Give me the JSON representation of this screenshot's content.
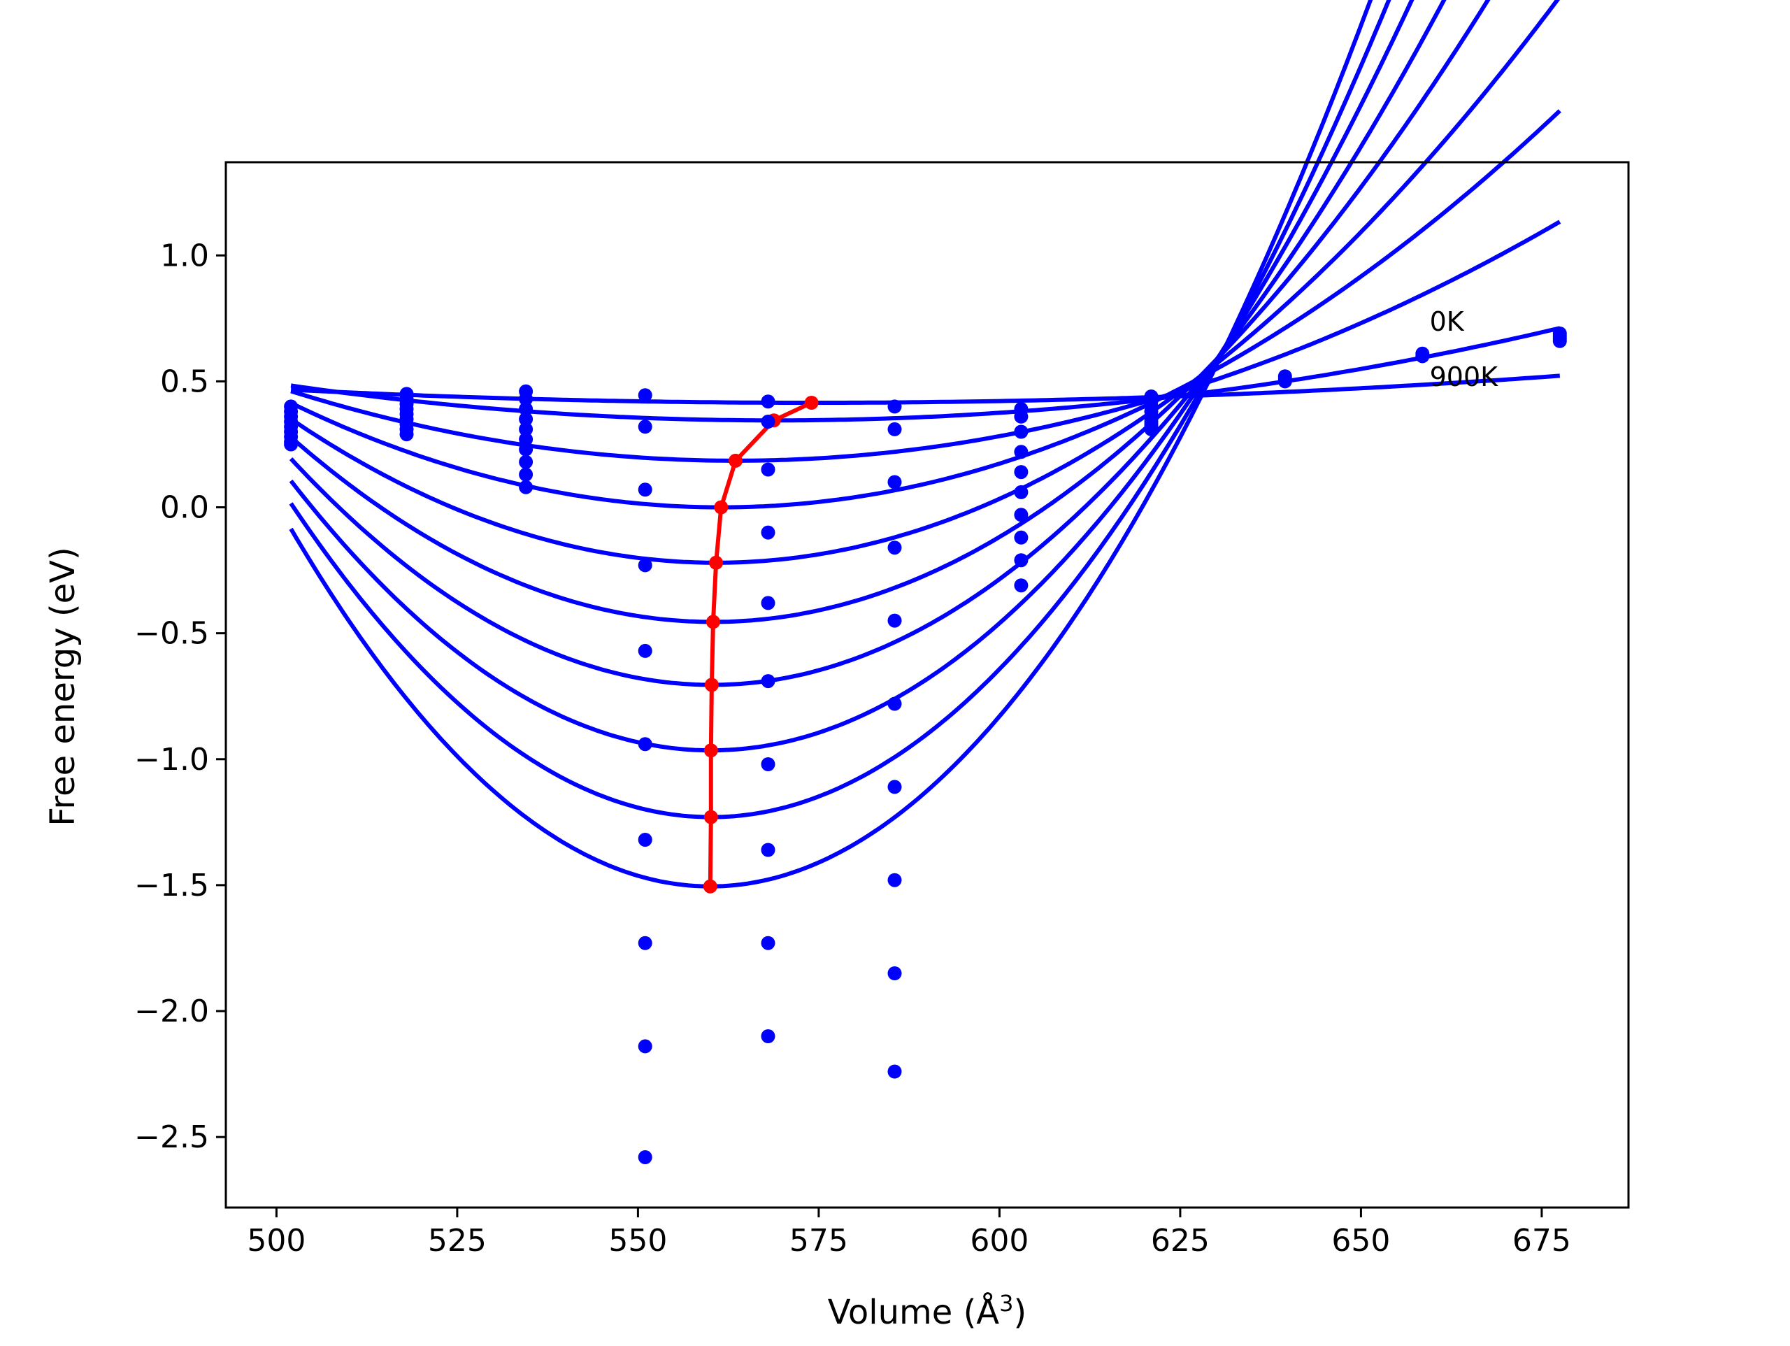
{
  "chart_data": {
    "type": "line",
    "title": "",
    "xlabel": "Volume (Å",
    "xlabel_sup": "3",
    "xlabel_end": ")",
    "ylabel": "Free energy (eV)",
    "xlim": [
      493,
      687
    ],
    "ylim": [
      -2.78,
      1.37
    ],
    "xticks": [
      500,
      525,
      550,
      575,
      600,
      625,
      650,
      675
    ],
    "xtick_labels": [
      "500",
      "525",
      "550",
      "575",
      "600",
      "625",
      "650",
      "675"
    ],
    "yticks": [
      1.0,
      0.5,
      0.0,
      -0.5,
      -1.0,
      -1.5,
      -2.0,
      -2.5
    ],
    "ytick_labels": [
      "1.0",
      "0.5",
      "0.0",
      "−0.5",
      "−1.0",
      "−1.5",
      "−2.0",
      "−2.5"
    ],
    "grid": false,
    "legend": "none",
    "colors": {
      "curves": "#0000ff",
      "points": "#0000ff",
      "minima": "#ff0000"
    },
    "annotations": [
      {
        "text": "0K",
        "x": 659.5,
        "y": 0.74
      },
      {
        "text": "900K",
        "x": 659.5,
        "y": 0.52
      }
    ],
    "curve_x_range": [
      502,
      677.5
    ],
    "fit_curves": [
      {
        "v0": 574.0,
        "e0": 0.415,
        "b": 1e-05
      },
      {
        "v0": 568.8,
        "e0": 0.345,
        "b": 3.1e-05
      },
      {
        "v0": 563.5,
        "e0": 0.185,
        "b": 7.3e-05
      },
      {
        "v0": 561.5,
        "e0": 0.0,
        "b": 0.000117
      },
      {
        "v0": 560.8,
        "e0": -0.22,
        "b": 0.000165
      },
      {
        "v0": 560.4,
        "e0": -0.455,
        "b": 0.000215
      },
      {
        "v0": 560.2,
        "e0": -0.705,
        "b": 0.000265
      },
      {
        "v0": 560.1,
        "e0": -0.965,
        "b": 0.000317
      },
      {
        "v0": 560.1,
        "e0": -1.23,
        "b": 0.000369
      },
      {
        "v0": 560.0,
        "e0": -1.505,
        "b": 0.000422
      }
    ],
    "minima_line": {
      "x": [
        574.0,
        568.8,
        563.5,
        561.5,
        560.8,
        560.4,
        560.2,
        560.1,
        560.1,
        560.0
      ],
      "y": [
        0.415,
        0.345,
        0.185,
        0.0,
        -0.22,
        -0.455,
        -0.705,
        -0.965,
        -1.23,
        -1.505
      ]
    },
    "scatter_points": [
      {
        "x": 502,
        "y": [
          0.4,
          0.38,
          0.36,
          0.34,
          0.32,
          0.3,
          0.28,
          0.26,
          0.25
        ]
      },
      {
        "x": 518,
        "y": [
          0.45,
          0.43,
          0.41,
          0.39,
          0.37,
          0.35,
          0.33,
          0.31,
          0.29
        ]
      },
      {
        "x": 534.5,
        "y": [
          0.46,
          0.43,
          0.39,
          0.35,
          0.31,
          0.27,
          0.23,
          0.18,
          0.13,
          0.08
        ]
      },
      {
        "x": 551,
        "y": [
          0.445,
          0.32,
          0.07,
          -0.23,
          -0.57,
          -0.94,
          -1.32,
          -1.73,
          -2.14,
          -2.58
        ]
      },
      {
        "x": 568,
        "y": [
          0.42,
          0.34,
          0.15,
          -0.1,
          -0.38,
          -0.69,
          -1.02,
          -1.36,
          -1.73,
          -2.1
        ]
      },
      {
        "x": 585.5,
        "y": [
          0.4,
          0.31,
          0.1,
          -0.16,
          -0.45,
          -0.78,
          -1.11,
          -1.48,
          -1.85,
          -2.24
        ]
      },
      {
        "x": 603,
        "y": [
          0.39,
          0.36,
          0.3,
          0.22,
          0.14,
          0.06,
          -0.03,
          -0.12,
          -0.21,
          -0.31
        ]
      },
      {
        "x": 621,
        "y": [
          0.44,
          0.42,
          0.4,
          0.38,
          0.36,
          0.34,
          0.33,
          0.32,
          0.31
        ]
      },
      {
        "x": 639.5,
        "y": [
          0.52,
          0.51,
          0.5
        ]
      },
      {
        "x": 658.5,
        "y": [
          0.61,
          0.6
        ]
      },
      {
        "x": 677.5,
        "y": [
          0.69,
          0.68,
          0.67,
          0.66
        ]
      }
    ]
  }
}
